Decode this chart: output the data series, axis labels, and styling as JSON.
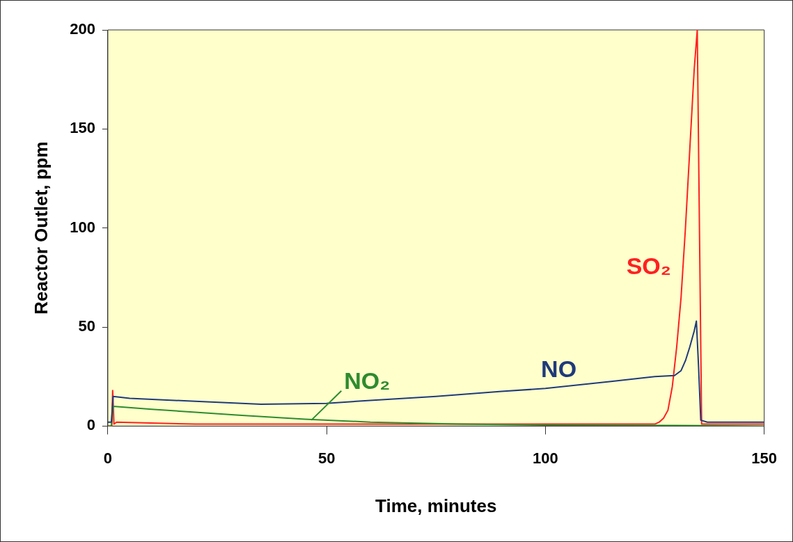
{
  "chart_data": {
    "type": "line",
    "xlabel": "Time, minutes",
    "ylabel": "Reactor Outlet, ppm",
    "xlim": [
      0,
      150
    ],
    "xticks": [
      0,
      50,
      100,
      150
    ],
    "ylim": [
      0,
      200
    ],
    "yticks": [
      0,
      50,
      100,
      150,
      200
    ],
    "grid": false,
    "legend": false,
    "marker": "none",
    "line_style": "solid",
    "series": [
      {
        "name": "NO",
        "color": "#1f3a7a",
        "x": [
          0,
          0.8,
          1.2,
          5,
          20,
          35,
          50,
          60,
          75,
          90,
          100,
          115,
          125,
          129.5,
          131,
          132,
          133,
          134,
          134.5,
          135,
          135.5,
          137,
          150
        ],
        "values": [
          2,
          2,
          15,
          14,
          12.5,
          11,
          11.5,
          13,
          15,
          17.5,
          19,
          22.5,
          25,
          25.5,
          28,
          33,
          40,
          48,
          53,
          30,
          3,
          2,
          2
        ]
      },
      {
        "name": "NO₂",
        "color": "#2e8b2e",
        "x": [
          0,
          0.8,
          1.2,
          10,
          20,
          30,
          45,
          60,
          80,
          100,
          130,
          150
        ],
        "values": [
          0,
          0,
          10,
          8.5,
          7,
          5.5,
          3.5,
          2,
          1,
          0.5,
          0.3,
          0
        ]
      },
      {
        "name": "SO₂",
        "color": "#ff2020",
        "x": [
          0,
          0.9,
          1.1,
          1.4,
          2,
          20,
          50,
          80,
          110,
          125,
          126,
          127,
          128,
          129,
          130,
          131,
          132,
          133,
          134,
          134.7,
          135.2,
          135.7,
          137,
          150
        ],
        "values": [
          0,
          0,
          18,
          1,
          2,
          1,
          1,
          1,
          1,
          1,
          2,
          4,
          8,
          20,
          40,
          65,
          100,
          140,
          180,
          200,
          100,
          1,
          1,
          1
        ]
      }
    ]
  }
}
